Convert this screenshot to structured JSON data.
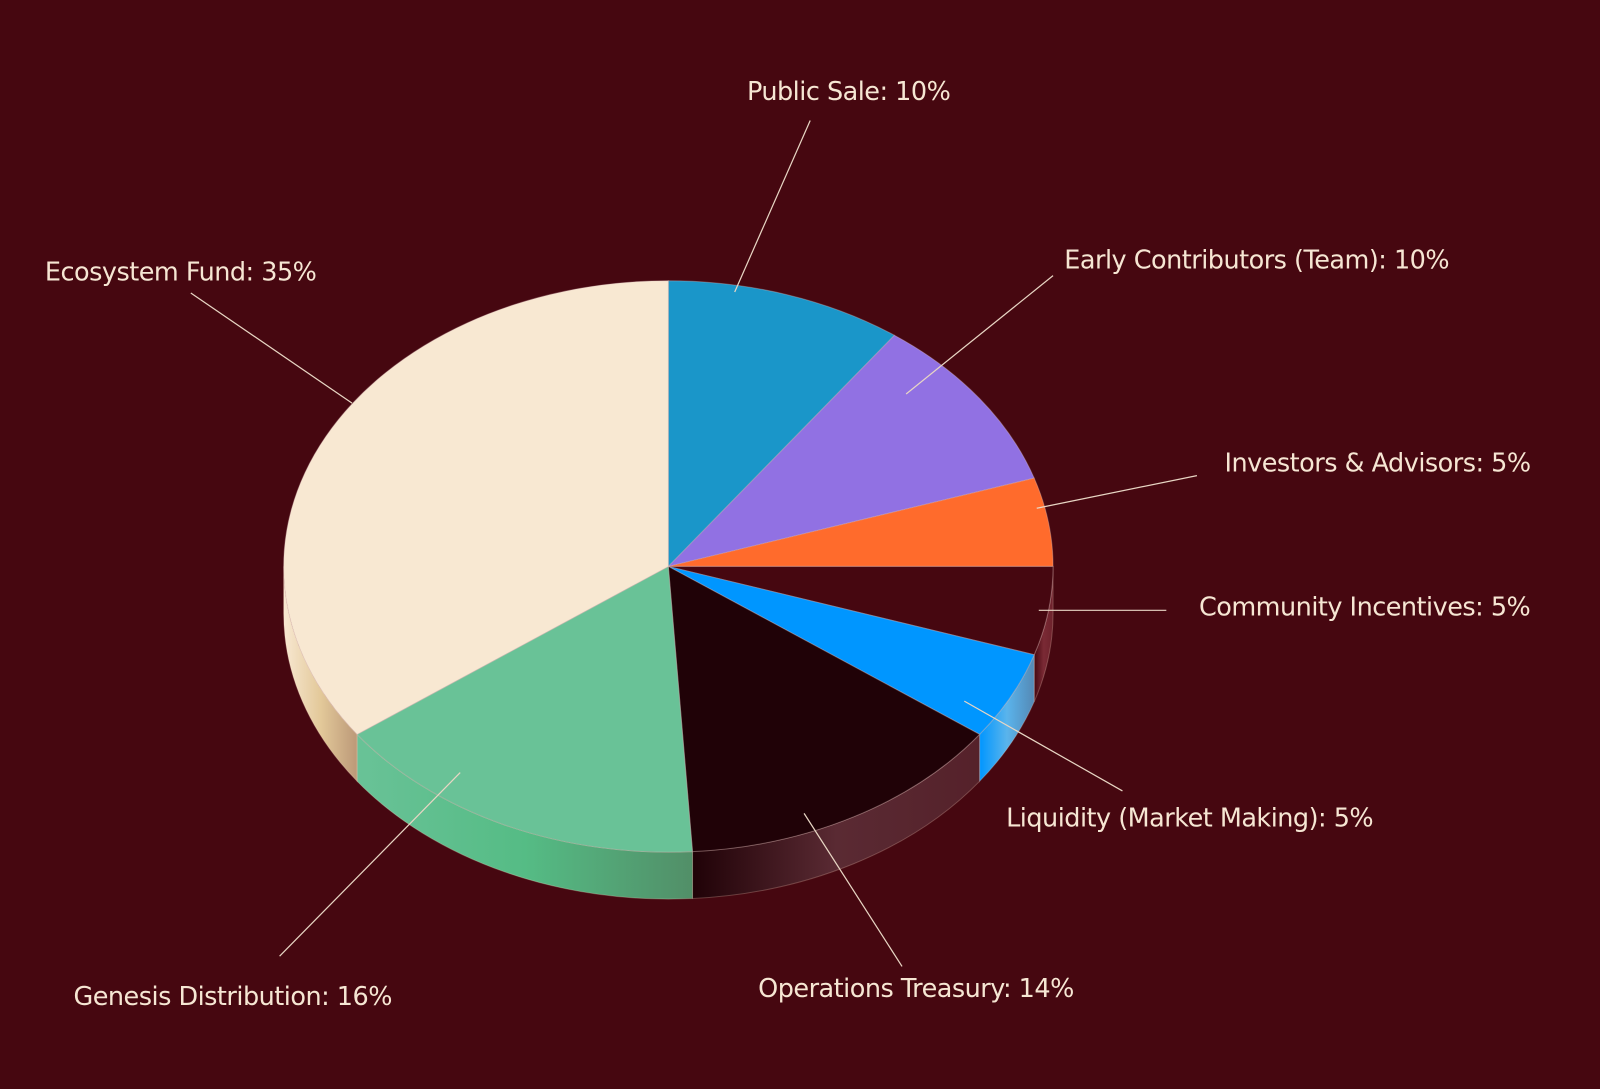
{
  "chart_data": {
    "type": "pie",
    "style": "3d",
    "title": "",
    "start": "top",
    "direction": "clockwise",
    "slices": [
      {
        "label": "Public Sale: 10%",
        "name": "Public Sale",
        "value": 10,
        "color": "#1a96c9",
        "side": "#1580ad"
      },
      {
        "label": "Early Contributors (Team): 10%",
        "name": "Early Contributors (Team)",
        "value": 10,
        "color": "#9171e3",
        "side": "#7a5cc9"
      },
      {
        "label": "Investors & Advisors: 5%",
        "name": "Investors & Advisors",
        "value": 5,
        "color": "#ff6b2c",
        "side": "#d9561e"
      },
      {
        "label": "Community Incentives: 5%",
        "name": "Community Incentives",
        "value": 5,
        "color": "#460710",
        "side": "#7a2a35"
      },
      {
        "label": "Liquidity (Market Making): 5%",
        "name": "Liquidity (Market Making)",
        "value": 5,
        "color": "#0096ff",
        "side": "#5ab4ec"
      },
      {
        "label": "Operations Treasury: 14%",
        "name": "Operations Treasury",
        "value": 14,
        "color": "#200207",
        "side": "#5a2a33"
      },
      {
        "label": "Genesis Distribution: 16%",
        "name": "Genesis Distribution",
        "value": 16,
        "color": "#69c297",
        "side": "#55bc85"
      },
      {
        "label": "Ecosystem Fund: 35%",
        "name": "Ecosystem Fund",
        "value": 35,
        "color": "#f8e8d2",
        "side": "#e3c99a"
      }
    ],
    "background": "#460710",
    "label_color": "#f6e6d3"
  }
}
